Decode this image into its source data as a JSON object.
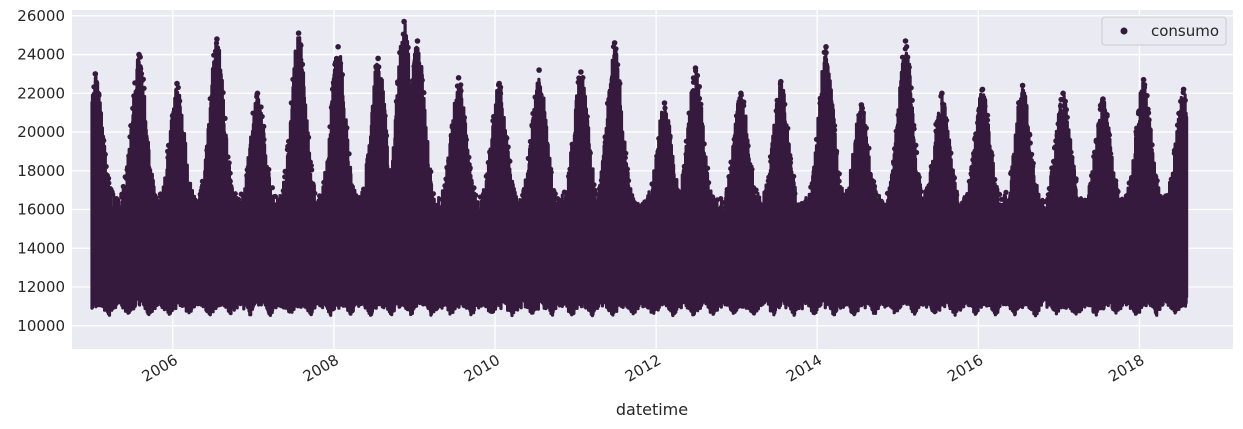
{
  "chart_data": {
    "type": "scatter",
    "title": "",
    "xlabel": "datetime",
    "ylabel": "",
    "xlim": [
      "2004-10-01",
      "2019-03-01"
    ],
    "ylim": [
      8800,
      26300
    ],
    "x_ticks": [
      "2006",
      "2008",
      "2010",
      "2012",
      "2014",
      "2016",
      "2018"
    ],
    "y_ticks": [
      10000,
      12000,
      14000,
      16000,
      18000,
      20000,
      22000,
      24000,
      26000
    ],
    "grid": true,
    "legend": {
      "position": "top-right",
      "entries": [
        "consumo"
      ]
    },
    "series": [
      {
        "name": "consumo",
        "color": "#351a3d",
        "x_range": [
          "2004-12-31",
          "2018-08-03"
        ],
        "typical_range": [
          10000,
          22000
        ],
        "pattern": "hourly consumption with annual winter and summer peaks",
        "peaks": [
          {
            "x": "2005-01-15",
            "y": 23000
          },
          {
            "x": "2005-08-01",
            "y": 24000
          },
          {
            "x": "2006-01-20",
            "y": 22500
          },
          {
            "x": "2006-07-20",
            "y": 24800
          },
          {
            "x": "2007-01-20",
            "y": 22000
          },
          {
            "x": "2007-07-25",
            "y": 25100
          },
          {
            "x": "2008-01-20",
            "y": 24400
          },
          {
            "x": "2008-07-20",
            "y": 23800
          },
          {
            "x": "2008-11-15",
            "y": 25700
          },
          {
            "x": "2009-01-15",
            "y": 24700
          },
          {
            "x": "2009-07-20",
            "y": 22800
          },
          {
            "x": "2010-01-20",
            "y": 22500
          },
          {
            "x": "2010-07-20",
            "y": 23200
          },
          {
            "x": "2011-01-25",
            "y": 23100
          },
          {
            "x": "2011-06-27",
            "y": 24600
          },
          {
            "x": "2012-02-08",
            "y": 21500
          },
          {
            "x": "2012-06-28",
            "y": 23300
          },
          {
            "x": "2013-01-20",
            "y": 22000
          },
          {
            "x": "2013-07-20",
            "y": 22600
          },
          {
            "x": "2014-02-10",
            "y": 24400
          },
          {
            "x": "2014-07-20",
            "y": 21400
          },
          {
            "x": "2015-02-05",
            "y": 24700
          },
          {
            "x": "2015-07-20",
            "y": 22000
          },
          {
            "x": "2016-01-20",
            "y": 22200
          },
          {
            "x": "2016-07-20",
            "y": 22400
          },
          {
            "x": "2017-01-20",
            "y": 22000
          },
          {
            "x": "2017-07-20",
            "y": 21700
          },
          {
            "x": "2018-01-20",
            "y": 22700
          },
          {
            "x": "2018-07-20",
            "y": 22200
          }
        ]
      }
    ]
  }
}
